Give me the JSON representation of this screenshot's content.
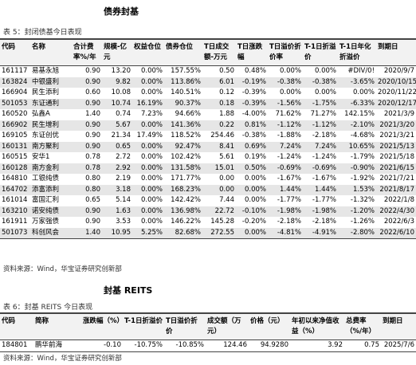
{
  "section1": {
    "title": "债券封基",
    "caption": "表 5：封闭债基今日表现",
    "table": {
      "headers": [
        "代码",
        "名称",
        "合计费率%/年",
        "规模-亿元",
        "权益仓位",
        "债券仓位",
        "T日成交额-万元",
        "T日涨跌幅",
        "T日溢价折价率",
        "T-1日折溢价",
        "T-1日年化折溢价",
        "到期日"
      ],
      "rows": [
        [
          "161117",
          "易基永旭",
          "0.90",
          "13.20",
          "0.00%",
          "157.55%",
          "0.50",
          "0.48%",
          "0.00%",
          "0.00%",
          "#DIV/0!",
          "2020/9/7"
        ],
        [
          "163824",
          "中银盛利",
          "0.90",
          "9.82",
          "0.00%",
          "113.86%",
          "6.01",
          "-0.19%",
          "-0.38%",
          "-0.38%",
          "-3.65%",
          "2020/10/15"
        ],
        [
          "166904",
          "民生添利",
          "0.60",
          "10.08",
          "0.00%",
          "140.51%",
          "0.12",
          "-0.39%",
          "0.00%",
          "0.00%",
          "0.00%",
          "2020/11/22"
        ],
        [
          "501053",
          "东证通利",
          "0.90",
          "10.74",
          "16.19%",
          "90.37%",
          "0.18",
          "-0.39%",
          "-1.56%",
          "-1.75%",
          "-6.33%",
          "2020/12/17"
        ],
        [
          "160520",
          "弘鑫A",
          "1.40",
          "0.74",
          "7.23%",
          "94.66%",
          "1.88",
          "-4.00%",
          "71.62%",
          "71.27%",
          "142.15%",
          "2021/3/9"
        ],
        [
          "166902",
          "民生增利",
          "0.90",
          "5.67",
          "0.00%",
          "141.36%",
          "0.22",
          "0.81%",
          "-1.12%",
          "-1.12%",
          "-2.10%",
          "2021/3/20"
        ],
        [
          "169105",
          "东证创优",
          "0.90",
          "21.34",
          "17.49%",
          "118.52%",
          "254.46",
          "-0.38%",
          "-1.88%",
          "-2.18%",
          "-4.68%",
          "2021/3/21"
        ],
        [
          "160131",
          "南方聚利",
          "0.90",
          "0.65",
          "0.00%",
          "92.47%",
          "8.41",
          "0.69%",
          "7.24%",
          "7.24%",
          "10.65%",
          "2021/5/13"
        ],
        [
          "160515",
          "安华1",
          "0.78",
          "2.72",
          "0.00%",
          "102.42%",
          "5.61",
          "0.19%",
          "-1.24%",
          "-1.24%",
          "-1.79%",
          "2021/5/18"
        ],
        [
          "160128",
          "南方金利",
          "0.78",
          "2.92",
          "0.00%",
          "131.58%",
          "15.01",
          "0.50%",
          "-0.69%",
          "-0.69%",
          "-0.90%",
          "2021/6/15"
        ],
        [
          "164810",
          "工银纯债",
          "0.80",
          "2.19",
          "0.00%",
          "171.77%",
          "0.00",
          "0.00%",
          "-1.67%",
          "-1.67%",
          "-1.92%",
          "2021/7/21"
        ],
        [
          "164702",
          "添富添利",
          "0.80",
          "3.18",
          "0.00%",
          "168.23%",
          "0.00",
          "0.00%",
          "1.44%",
          "1.44%",
          "1.53%",
          "2021/8/17"
        ],
        [
          "161014",
          "富国汇利",
          "0.65",
          "5.14",
          "0.00%",
          "142.42%",
          "7.44",
          "0.00%",
          "-1.77%",
          "-1.77%",
          "-1.32%",
          "2022/1/8"
        ],
        [
          "163210",
          "诺安纯债",
          "0.90",
          "1.63",
          "0.00%",
          "136.98%",
          "22.72",
          "-0.10%",
          "-1.98%",
          "-1.98%",
          "-1.20%",
          "2022/4/30"
        ],
        [
          "161911",
          "万家强债",
          "0.90",
          "3.53",
          "0.00%",
          "146.22%",
          "145.28",
          "-0.20%",
          "-2.18%",
          "-2.18%",
          "-1.26%",
          "2022/6/3"
        ],
        [
          "501073",
          "科创风会",
          "1.40",
          "10.95",
          "5.25%",
          "82.68%",
          "272.55",
          "0.00%",
          "-4.81%",
          "-4.91%",
          "-2.80%",
          "2022/6/10"
        ]
      ]
    },
    "source": "资料来源：Wind，华宝证券研究创新部"
  },
  "section2": {
    "title": "封基 REITS",
    "caption": "表 6：封基 REITS 今日表现",
    "table": {
      "headers": [
        "代码",
        "简称",
        "涨跌幅（%）",
        "T-1日折溢价",
        "T日溢价折价",
        "成交额（万元）",
        "价格（元）",
        "年初以来净值收益（%）",
        "总费率（%/年）",
        "到期日"
      ],
      "rows": [
        [
          "184801",
          "鹏华前海",
          "-0.10",
          "-10.75%",
          "-10.85%",
          "124.46",
          "94.9280",
          "3.92",
          "0.75",
          "2025/7/6"
        ]
      ]
    },
    "source": "资料来源：Wind，华宝证券研究创新部"
  }
}
